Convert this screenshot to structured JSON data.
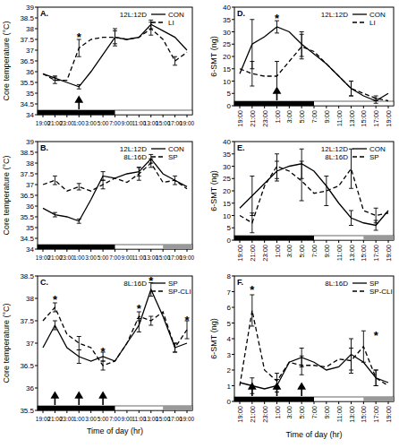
{
  "chart_data": [
    {
      "type": "line",
      "title": "A.",
      "y_label": "Core temperature (°C)",
      "categories": [
        "19:00",
        "21:00",
        "23:00",
        "1:00",
        "3:00",
        "5:00",
        "7:00",
        "9:00",
        "11:00",
        "13:00",
        "15:00",
        "17:00",
        "19:00"
      ],
      "ylim": [
        34,
        39
      ],
      "yticks": [
        34,
        34.5,
        35,
        35.5,
        36,
        36.5,
        37,
        37.5,
        38,
        38.5,
        39
      ],
      "series": [
        {
          "name": "CON",
          "color": "#000000",
          "line_style": "solid",
          "values": [
            35.9,
            35.7,
            35.5,
            35.3,
            36.0,
            36.8,
            37.6,
            37.5,
            37.6,
            38.2,
            37.9,
            37.6,
            37.0
          ],
          "errors": [
            null,
            0.1,
            null,
            0.1,
            null,
            null,
            0.4,
            null,
            null,
            0.2,
            null,
            null,
            null
          ]
        },
        {
          "name": "LI",
          "color": "#000000",
          "line_style": "dashed",
          "values": [
            35.9,
            35.6,
            35.6,
            37.1,
            37.5,
            37.6,
            37.6,
            37.5,
            37.6,
            38.0,
            37.5,
            36.5,
            36.9
          ],
          "errors": [
            null,
            0.15,
            null,
            0.4,
            null,
            null,
            0.3,
            null,
            null,
            0.3,
            null,
            0.2,
            null
          ]
        }
      ],
      "light_labels": [
        "12L:12D"
      ],
      "annotations": [
        {
          "text": "*",
          "x": 3,
          "y": 37.65
        }
      ],
      "arrows": [
        3
      ],
      "phases": [
        {
          "from": 0,
          "to": 6,
          "color": "#000000"
        }
      ]
    },
    {
      "type": "line",
      "title": "B.",
      "y_label": "Core temperature (°C)",
      "categories": [
        "19:00",
        "21:00",
        "23:00",
        "1:00",
        "3:00",
        "5:00",
        "7:00",
        "9:00",
        "11:00",
        "13:00",
        "15:00",
        "17:00",
        "19:00"
      ],
      "ylim": [
        34,
        39
      ],
      "yticks": [
        34,
        34.5,
        35,
        35.5,
        36,
        36.5,
        37,
        37.5,
        38,
        38.5,
        39
      ],
      "series": [
        {
          "name": "CON",
          "color": "#000000",
          "line_style": "solid",
          "values": [
            35.9,
            35.6,
            35.5,
            35.3,
            36.3,
            37.4,
            37.3,
            37.5,
            37.6,
            38.2,
            37.5,
            37.2,
            36.9
          ],
          "errors": [
            null,
            0.1,
            null,
            0.1,
            null,
            0.2,
            null,
            null,
            0.2,
            0.2,
            null,
            null,
            null
          ]
        },
        {
          "name": "SP",
          "color": "#000000",
          "line_style": "dashed",
          "values": [
            37.0,
            37.2,
            36.7,
            36.9,
            36.7,
            37.0,
            37.3,
            37.1,
            37.5,
            38.0,
            37.1,
            37.2,
            36.8
          ],
          "errors": [
            null,
            0.2,
            null,
            0.15,
            null,
            0.2,
            null,
            null,
            0.3,
            0.2,
            null,
            0.2,
            null
          ]
        }
      ],
      "light_labels": [
        "12L:12D",
        "8L:16D"
      ],
      "annotations": [],
      "arrows": [],
      "phases": [
        {
          "from": 0,
          "to": 6,
          "color": "#000000"
        },
        {
          "from": 10,
          "to": 12,
          "color": "#999999"
        }
      ]
    },
    {
      "type": "line",
      "title": "C.",
      "y_label": "Core temperature (°C)",
      "x_label": "Time of day (hr)",
      "categories": [
        "19:00",
        "21:00",
        "23:00",
        "1:00",
        "3:00",
        "5:00",
        "7:00",
        "9:00",
        "11:00",
        "13:00",
        "15:00",
        "17:00",
        "19:00"
      ],
      "ylim": [
        35.5,
        38.5
      ],
      "yticks": [
        35.5,
        36,
        36.5,
        37,
        37.5,
        38,
        38.5
      ],
      "series": [
        {
          "name": "SP",
          "color": "#000000",
          "line_style": "solid",
          "values": [
            36.9,
            37.4,
            36.9,
            36.7,
            36.6,
            36.7,
            36.6,
            37.0,
            37.4,
            38.2,
            37.6,
            36.9,
            37.0
          ],
          "errors": [
            null,
            0.1,
            null,
            0.15,
            null,
            0.1,
            null,
            null,
            0.15,
            0.15,
            null,
            0.1,
            null
          ]
        },
        {
          "name": "SP-CLI",
          "color": "#000000",
          "line_style": "dashed",
          "values": [
            37.5,
            37.8,
            37.2,
            37.0,
            36.9,
            36.5,
            36.6,
            37.0,
            37.6,
            37.5,
            37.7,
            36.9,
            37.3
          ],
          "errors": [
            null,
            0.1,
            null,
            0.15,
            null,
            0.1,
            null,
            null,
            0.1,
            0.1,
            null,
            0.1,
            0.2
          ]
        }
      ],
      "light_labels": [
        "8L:16D"
      ],
      "annotations": [
        {
          "text": "*",
          "x": 1,
          "y": 38.0
        },
        {
          "text": "*",
          "x": 5,
          "y": 36.85
        },
        {
          "text": "*",
          "x": 8,
          "y": 37.8
        },
        {
          "text": "*",
          "x": 9,
          "y": 38.42
        },
        {
          "text": "*",
          "x": 12,
          "y": 37.55
        }
      ],
      "arrows": [
        1,
        3,
        5
      ],
      "phases": [
        {
          "from": 0,
          "to": 6,
          "color": "#000000"
        },
        {
          "from": 10,
          "to": 12,
          "color": "#999999"
        }
      ]
    },
    {
      "type": "line",
      "title": "D.",
      "y_label": "6-SMT (ng)",
      "categories": [
        "19:00",
        "21:00",
        "23:00",
        "1:00",
        "3:00",
        "5:00",
        "7:00",
        "9:00",
        "11:00",
        "13:00",
        "15:00",
        "17:00",
        "19:00"
      ],
      "ylim": [
        0,
        40
      ],
      "yticks": [
        0,
        5,
        10,
        15,
        20,
        25,
        30,
        35,
        40
      ],
      "series": [
        {
          "name": "CON",
          "color": "#000000",
          "line_style": "solid",
          "values": [
            13,
            25,
            28,
            32,
            30,
            25,
            21,
            17,
            12,
            7,
            4,
            2,
            5
          ],
          "errors": [
            null,
            10,
            null,
            2.5,
            null,
            5,
            null,
            null,
            null,
            3,
            null,
            1,
            null
          ]
        },
        {
          "name": "LI",
          "color": "#000000",
          "line_style": "dashed",
          "values": [
            15,
            13,
            12,
            12,
            18,
            24,
            22,
            17,
            12,
            7,
            5,
            3,
            2
          ],
          "errors": [
            null,
            5,
            null,
            6,
            null,
            5,
            null,
            null,
            null,
            3,
            null,
            1,
            null
          ]
        }
      ],
      "light_labels": [
        "12L:12D"
      ],
      "annotations": [
        {
          "text": "*",
          "x": 3,
          "y": 36
        }
      ],
      "arrows": [
        3
      ],
      "phases": [
        {
          "from": 0,
          "to": 6,
          "color": "#000000"
        }
      ]
    },
    {
      "type": "line",
      "title": "E.",
      "y_label": "6-SMT (ng)",
      "categories": [
        "19:00",
        "21:00",
        "23:00",
        "1:00",
        "3:00",
        "5:00",
        "7:00",
        "9:00",
        "11:00",
        "13:00",
        "15:00",
        "17:00",
        "19:00"
      ],
      "ylim": [
        0,
        40
      ],
      "yticks": [
        0,
        5,
        10,
        15,
        20,
        25,
        30,
        35,
        40
      ],
      "series": [
        {
          "name": "CON",
          "color": "#000000",
          "line_style": "solid",
          "values": [
            13,
            18,
            23,
            28,
            30,
            31,
            28,
            22,
            15,
            9,
            7,
            6,
            12
          ],
          "errors": [
            null,
            8,
            null,
            4,
            null,
            6,
            null,
            null,
            null,
            3,
            null,
            2,
            null
          ]
        },
        {
          "name": "SP",
          "color": "#000000",
          "line_style": "dashed",
          "values": [
            10,
            7,
            22,
            30,
            28,
            24,
            19,
            20,
            22,
            29,
            12,
            10,
            11
          ],
          "errors": [
            null,
            4,
            null,
            5,
            null,
            8,
            null,
            6,
            null,
            8,
            null,
            3,
            null
          ]
        }
      ],
      "light_labels": [
        "12L:12D",
        "8L:16D"
      ],
      "annotations": [],
      "arrows": [],
      "phases": [
        {
          "from": 0,
          "to": 6,
          "color": "#000000"
        },
        {
          "from": 10,
          "to": 12,
          "color": "#999999"
        }
      ]
    },
    {
      "type": "line",
      "title": "F.",
      "y_label": "6-SMT (ng)",
      "x_label": "Time of day (hr)",
      "categories": [
        "19:00",
        "21:00",
        "23:00",
        "1:00",
        "3:00",
        "5:00",
        "7:00",
        "9:00",
        "11:00",
        "13:00",
        "15:00",
        "17:00",
        "19:00"
      ],
      "ylim": [
        0,
        8
      ],
      "yticks": [
        0,
        1,
        2,
        3,
        4,
        5,
        6,
        7,
        8
      ],
      "series": [
        {
          "name": "SP",
          "color": "#000000",
          "line_style": "solid",
          "values": [
            1.2,
            1.0,
            0.8,
            1.0,
            2.5,
            2.8,
            2.5,
            2.0,
            2.2,
            3.0,
            2.5,
            1.5,
            1.2
          ],
          "errors": [
            null,
            0.5,
            null,
            0.4,
            null,
            0.6,
            null,
            null,
            null,
            1.0,
            null,
            0.5,
            null
          ]
        },
        {
          "name": "SP-CLI",
          "color": "#000000",
          "line_style": "dashed",
          "values": [
            1.0,
            5.8,
            2.0,
            1.3,
            2.5,
            2.3,
            2.3,
            2.2,
            2.7,
            2.6,
            3.5,
            1.5,
            1.0
          ],
          "errors": [
            null,
            1.0,
            null,
            0.5,
            null,
            0.6,
            null,
            null,
            null,
            0.8,
            1.0,
            0.5,
            null
          ]
        }
      ],
      "light_labels": [
        "8L:16D"
      ],
      "annotations": [
        {
          "text": "*",
          "x": 1,
          "y": 7.2
        },
        {
          "text": "*",
          "x": 11,
          "y": 4.3
        }
      ],
      "arrows": [
        1,
        3,
        5
      ],
      "phases": [
        {
          "from": 0,
          "to": 6,
          "color": "#000000"
        },
        {
          "from": 10,
          "to": 12,
          "color": "#999999"
        }
      ]
    }
  ]
}
